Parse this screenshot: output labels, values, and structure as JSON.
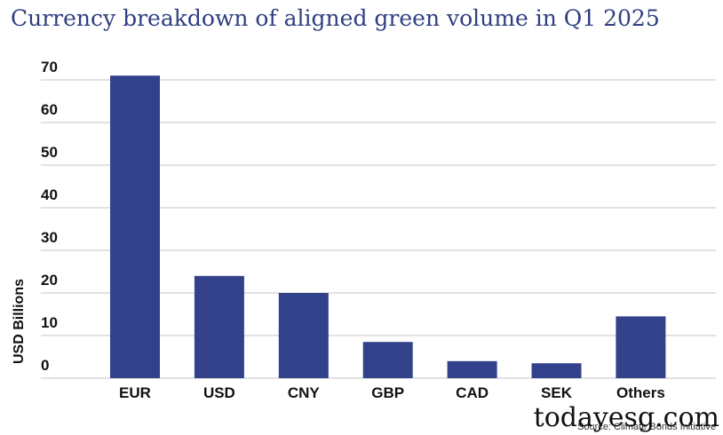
{
  "title": "Currency breakdown of aligned green volume in Q1 2025",
  "source": "Source: Climate Bonds Initiative",
  "watermark": "todayesg.com",
  "colors": {
    "bar": "#33418a",
    "grid": "#c4c4c4",
    "title": "#2f3f80"
  },
  "chart_data": {
    "type": "bar",
    "title": "Currency breakdown of aligned green volume in Q1 2025",
    "xlabel": "",
    "ylabel": "USD Billions",
    "categories": [
      "EUR",
      "USD",
      "CNY",
      "GBP",
      "CAD",
      "SEK",
      "Others"
    ],
    "values": [
      71,
      24,
      20,
      8.5,
      4,
      3.5,
      14.5
    ],
    "ylim": [
      0,
      70
    ],
    "yticks": [
      0,
      10,
      20,
      30,
      40,
      50,
      60,
      70
    ],
    "grid": true,
    "legend": "none"
  }
}
